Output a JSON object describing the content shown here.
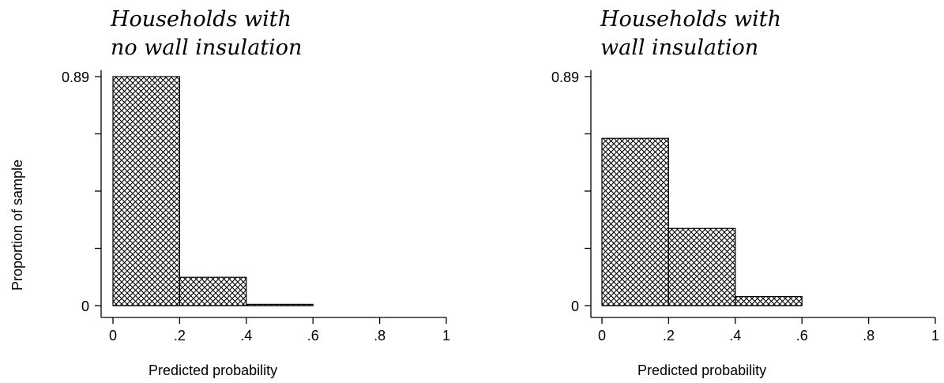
{
  "figure": {
    "ylabel": "Proportion of sample",
    "xlabel": "Predicted probability"
  },
  "chart_data": [
    {
      "type": "bar",
      "histogram": true,
      "title": "Households with no wall insulation",
      "title_lines": [
        "Households with",
        "no wall insulation"
      ],
      "xlabel": "Predicted probability",
      "ylabel": "Proportion of sample",
      "bins": [
        [
          0,
          0.2
        ],
        [
          0.2,
          0.4
        ],
        [
          0.4,
          0.6
        ]
      ],
      "values": [
        0.89,
        0.11,
        0.005
      ],
      "xlim": [
        0,
        1
      ],
      "ylim": [
        0,
        0.89
      ],
      "xticks": [
        0,
        0.2,
        0.4,
        0.6,
        0.8,
        1
      ],
      "xtick_labels": [
        "0",
        ".2",
        ".4",
        ".6",
        ".8",
        "1"
      ],
      "yticks": [
        0,
        0.2225,
        0.445,
        0.6675,
        0.89
      ],
      "ytick_labels": [
        "0",
        "",
        "",
        "",
        "0.89"
      ],
      "grid": false,
      "fill_pattern": "crosshatch"
    },
    {
      "type": "bar",
      "histogram": true,
      "title": "Households with wall insulation",
      "title_lines": [
        "Households with",
        "wall insulation"
      ],
      "xlabel": "Predicted probability",
      "ylabel": "",
      "bins": [
        [
          0,
          0.2
        ],
        [
          0.2,
          0.4
        ],
        [
          0.4,
          0.6
        ]
      ],
      "values": [
        0.65,
        0.3,
        0.035
      ],
      "xlim": [
        0,
        1
      ],
      "ylim": [
        0,
        0.89
      ],
      "xticks": [
        0,
        0.2,
        0.4,
        0.6,
        0.8,
        1
      ],
      "xtick_labels": [
        "0",
        ".2",
        ".4",
        ".6",
        ".8",
        "1"
      ],
      "yticks": [
        0,
        0.2225,
        0.445,
        0.6675,
        0.89
      ],
      "ytick_labels": [
        "0",
        "",
        "",
        "",
        "0.89"
      ],
      "grid": false,
      "fill_pattern": "crosshatch"
    }
  ]
}
